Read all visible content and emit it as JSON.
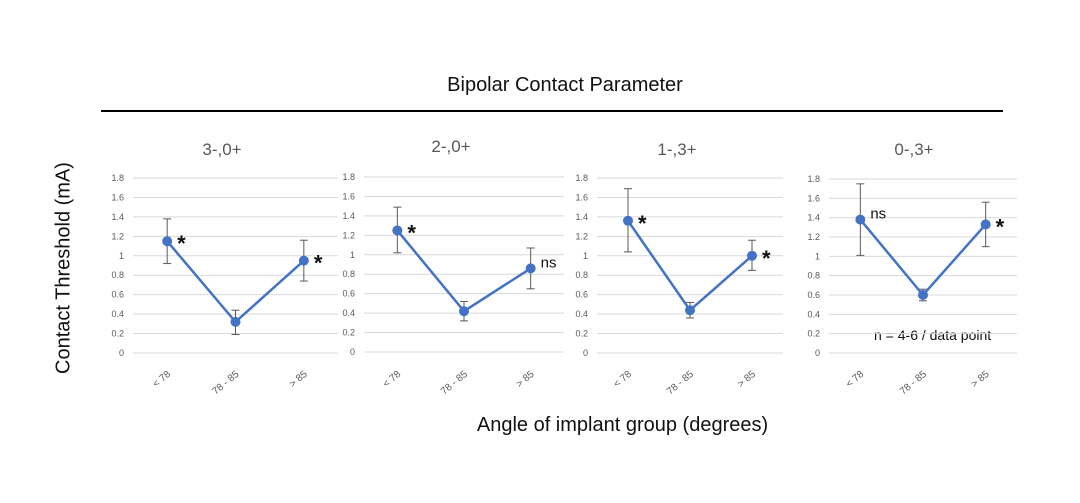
{
  "title": "Bipolar Contact Parameter",
  "ylabel": "Contact Threshold (mA)",
  "xlabel": "Angle of implant group (degrees)",
  "note": "n = 4-6 / data point",
  "colors": {
    "series": "#4472c4",
    "grid": "#d9d9d9",
    "error_bar": "#595959"
  },
  "chart_data": [
    {
      "type": "line",
      "title": "3-,0+",
      "categories": [
        "< 78",
        "78 - 85",
        "> 85"
      ],
      "values": [
        1.15,
        0.32,
        0.95
      ],
      "error_low": [
        0.92,
        0.19,
        0.74
      ],
      "error_high": [
        1.38,
        0.44,
        1.16
      ],
      "annotations": [
        "*",
        "",
        "*"
      ],
      "ylim": [
        0,
        1.8
      ],
      "yticks": [
        "0",
        "0.2",
        "0.4",
        "0.6",
        "0.8",
        "1",
        "1.2",
        "1.4",
        "1.6",
        "1.8"
      ],
      "grid": true
    },
    {
      "type": "line",
      "title": "2-,0+",
      "categories": [
        "< 78",
        "78 - 85",
        "> 85"
      ],
      "values": [
        1.25,
        0.42,
        0.86
      ],
      "error_low": [
        1.02,
        0.32,
        0.65
      ],
      "error_high": [
        1.49,
        0.52,
        1.07
      ],
      "annotations": [
        "*",
        "",
        "ns"
      ],
      "ylim": [
        0,
        1.8
      ],
      "yticks": [
        "0",
        "0.2",
        "0.4",
        "0.6",
        "0.8",
        "1",
        "1.2",
        "1.4",
        "1.6",
        "1.8"
      ],
      "grid": true
    },
    {
      "type": "line",
      "title": "1-,3+",
      "categories": [
        "< 78",
        "78 - 85",
        "> 85"
      ],
      "values": [
        1.36,
        0.44,
        1.0
      ],
      "error_low": [
        1.04,
        0.36,
        0.85
      ],
      "error_high": [
        1.69,
        0.52,
        1.16
      ],
      "annotations": [
        "*",
        "",
        "*"
      ],
      "ylim": [
        0,
        1.8
      ],
      "yticks": [
        "0",
        "0.2",
        "0.4",
        "0.6",
        "0.8",
        "1",
        "1.2",
        "1.4",
        "1.6",
        "1.8"
      ],
      "grid": true
    },
    {
      "type": "line",
      "title": "0-,3+",
      "categories": [
        "< 78",
        "78 - 85",
        "> 85"
      ],
      "values": [
        1.38,
        0.6,
        1.33
      ],
      "error_low": [
        1.01,
        0.54,
        1.1
      ],
      "error_high": [
        1.75,
        0.66,
        1.56
      ],
      "annotations": [
        "ns",
        "",
        "*"
      ],
      "ylim": [
        0,
        1.8
      ],
      "yticks": [
        "0",
        "0.2",
        "0.4",
        "0.6",
        "0.8",
        "1",
        "1.2",
        "1.4",
        "1.6",
        "1.8"
      ],
      "grid": true
    }
  ]
}
